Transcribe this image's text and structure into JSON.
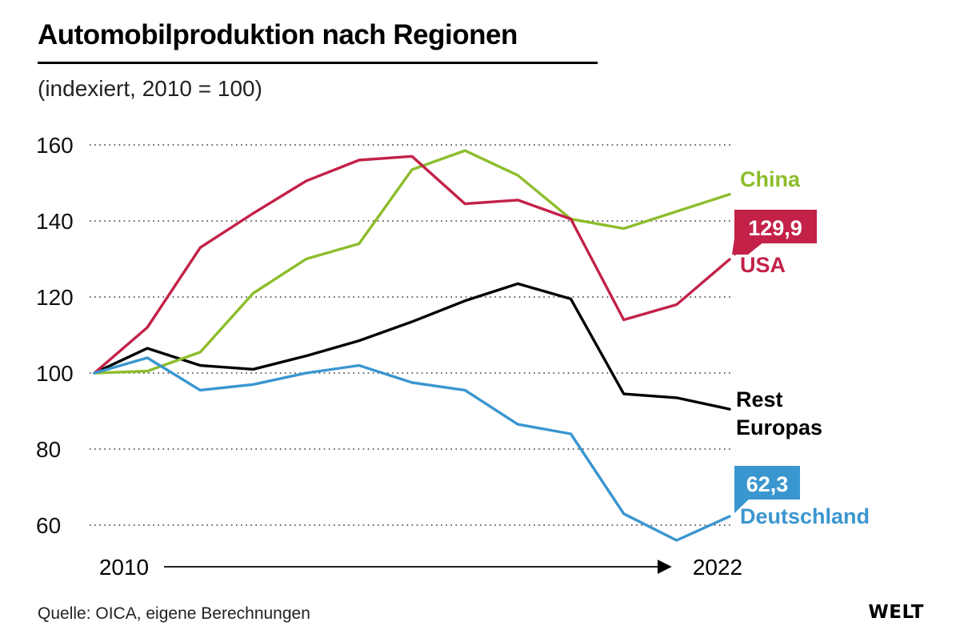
{
  "title": "Automobilproduktion nach Regionen",
  "subtitle": "(indexiert, 2010 = 100)",
  "source": "Quelle: OICA, eigene Berechnungen",
  "logo": "WELT",
  "chart_data": {
    "type": "line",
    "title": "Automobilproduktion nach Regionen",
    "subtitle": "(indexiert, 2010 = 100)",
    "x": [
      2010,
      2011,
      2012,
      2013,
      2014,
      2015,
      2016,
      2017,
      2018,
      2019,
      2020,
      2021,
      2022
    ],
    "x_start_label": "2010",
    "x_end_label": "2022",
    "yticks": [
      60,
      80,
      100,
      120,
      140,
      160
    ],
    "ylim": [
      55,
      163
    ],
    "grid": "horizontal dotted",
    "series": [
      {
        "name": "China",
        "color": "#8dbd2c",
        "values": [
          100,
          100.5,
          105.5,
          121,
          130,
          134,
          153.5,
          158.5,
          152,
          140.5,
          138,
          142.5,
          147
        ]
      },
      {
        "name": "USA",
        "color": "#c32148",
        "callout": "129,9",
        "values": [
          100,
          112,
          133,
          142,
          150.5,
          156,
          157,
          144.5,
          145.5,
          140.5,
          114,
          118,
          129.9
        ]
      },
      {
        "name": "Rest Europas",
        "label_line1": "Rest",
        "label_line2": "Europas",
        "color": "#000000",
        "values": [
          100,
          106.5,
          102,
          101,
          104.5,
          108.5,
          113.5,
          119,
          123.5,
          119.5,
          94.5,
          93.5,
          90.5
        ]
      },
      {
        "name": "Deutschland",
        "color": "#3a96cf",
        "callout": "62,3",
        "values": [
          100,
          104,
          95.5,
          97,
          100,
          102,
          97.5,
          95.5,
          86.5,
          84,
          63,
          56,
          62.3
        ]
      }
    ]
  }
}
